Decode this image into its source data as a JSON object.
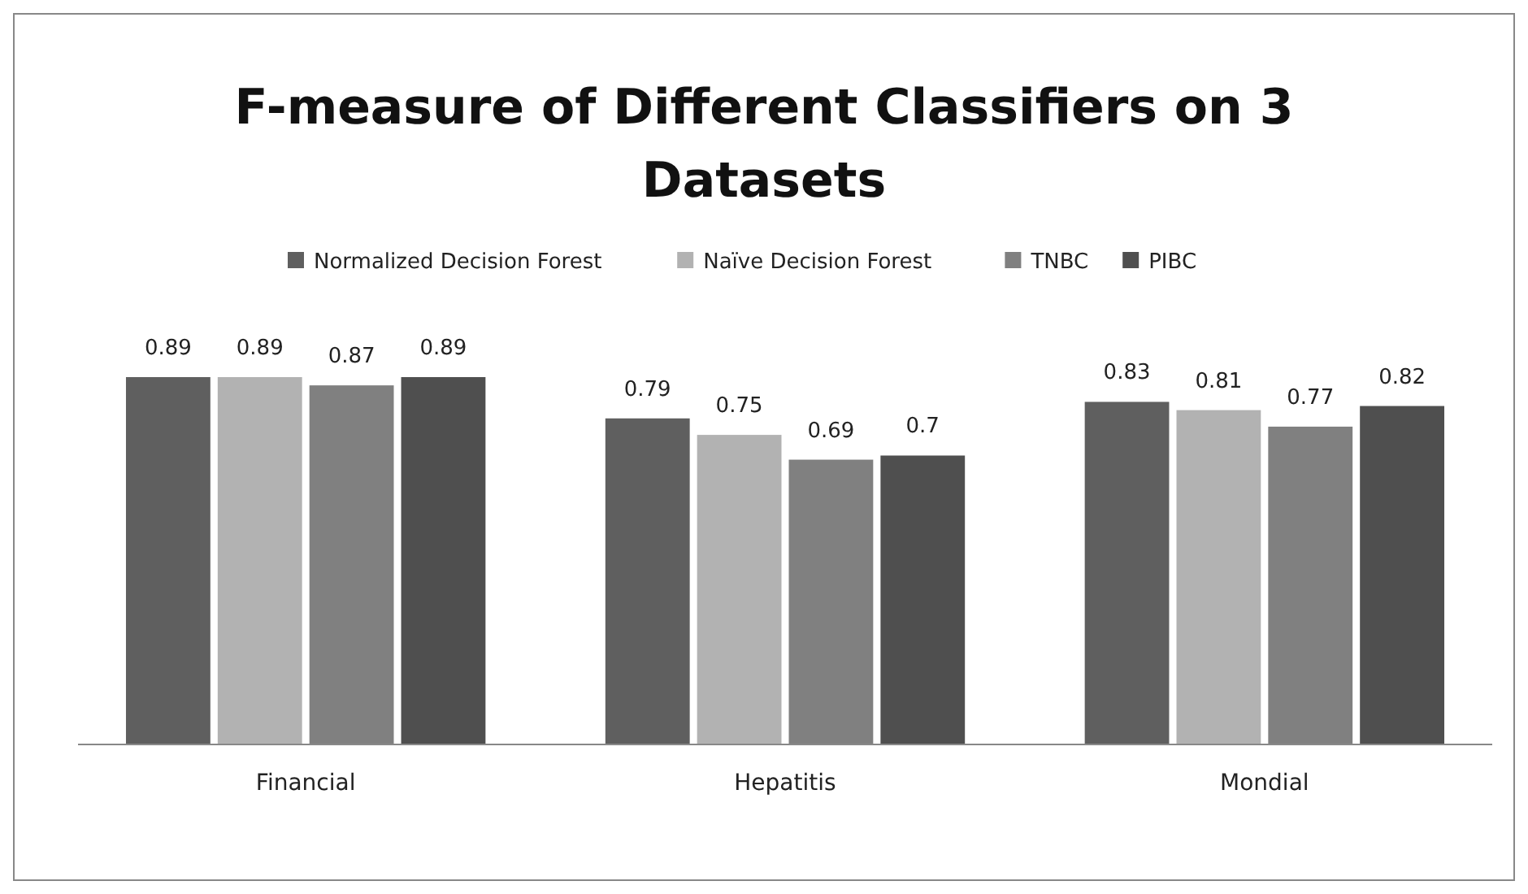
{
  "chart_data": {
    "type": "bar",
    "title": "F-measure of Different Classifiers on 3 Datasets",
    "categories": [
      "Financial",
      "Hepatitis",
      "Mondial"
    ],
    "series": [
      {
        "name": "Normalized Decision Forest",
        "color": "#5f5f5f",
        "values": [
          0.89,
          0.79,
          0.83
        ]
      },
      {
        "name": "Naïve Decision Forest",
        "color": "#b2b2b2",
        "values": [
          0.89,
          0.75,
          0.81
        ]
      },
      {
        "name": "TNBC",
        "color": "#808080",
        "values": [
          0.87,
          0.69,
          0.77
        ]
      },
      {
        "name": "PIBC",
        "color": "#4f4f4f",
        "values": [
          0.89,
          0.7,
          0.82
        ]
      }
    ],
    "data_labels": true,
    "legend": "top"
  }
}
